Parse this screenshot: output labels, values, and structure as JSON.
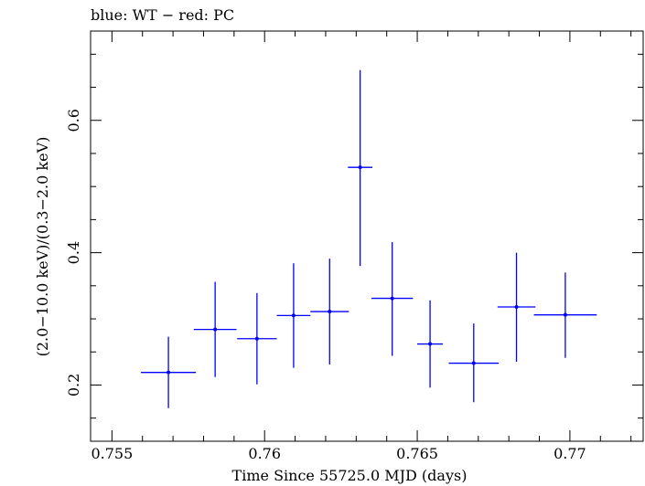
{
  "chart_data": {
    "type": "scatter",
    "title": "blue: WT − red: PC",
    "xlabel": "Time Since 55725.0 MJD (days)",
    "ylabel": "(2.0−10.0 keV)/(0.3−2.0 keV)",
    "xlim": [
      0.7543,
      0.7724
    ],
    "ylim": [
      0.115,
      0.735
    ],
    "xticks": [
      0.755,
      0.76,
      0.765,
      0.77
    ],
    "xtick_labels": [
      "0.755",
      "0.76",
      "0.765",
      "0.77"
    ],
    "yticks": [
      0.2,
      0.4,
      0.6
    ],
    "ytick_labels": [
      "0.2",
      "0.4",
      "0.6"
    ],
    "grid": false,
    "legend": "none",
    "series": [
      {
        "color": "#0000ff",
        "points": [
          {
            "x": 0.75685,
            "xerr": 0.0009,
            "y": 0.219,
            "ylo": 0.165,
            "yhi": 0.273
          },
          {
            "x": 0.75838,
            "xerr": 0.0007,
            "y": 0.284,
            "ylo": 0.212,
            "yhi": 0.356
          },
          {
            "x": 0.75975,
            "xerr": 0.00065,
            "y": 0.27,
            "ylo": 0.201,
            "yhi": 0.339
          },
          {
            "x": 0.76095,
            "xerr": 0.00055,
            "y": 0.305,
            "ylo": 0.226,
            "yhi": 0.384
          },
          {
            "x": 0.76213,
            "xerr": 0.00063,
            "y": 0.311,
            "ylo": 0.231,
            "yhi": 0.391
          },
          {
            "x": 0.76313,
            "xerr": 0.0004,
            "y": 0.529,
            "ylo": 0.38,
            "yhi": 0.676
          },
          {
            "x": 0.76418,
            "xerr": 0.00068,
            "y": 0.331,
            "ylo": 0.244,
            "yhi": 0.416
          },
          {
            "x": 0.76542,
            "xerr": 0.00042,
            "y": 0.262,
            "ylo": 0.196,
            "yhi": 0.328
          },
          {
            "x": 0.76685,
            "xerr": 0.00082,
            "y": 0.233,
            "ylo": 0.174,
            "yhi": 0.293
          },
          {
            "x": 0.76825,
            "xerr": 0.00062,
            "y": 0.318,
            "ylo": 0.235,
            "yhi": 0.4
          },
          {
            "x": 0.76985,
            "xerr": 0.00103,
            "y": 0.306,
            "ylo": 0.241,
            "yhi": 0.37
          }
        ]
      }
    ]
  }
}
